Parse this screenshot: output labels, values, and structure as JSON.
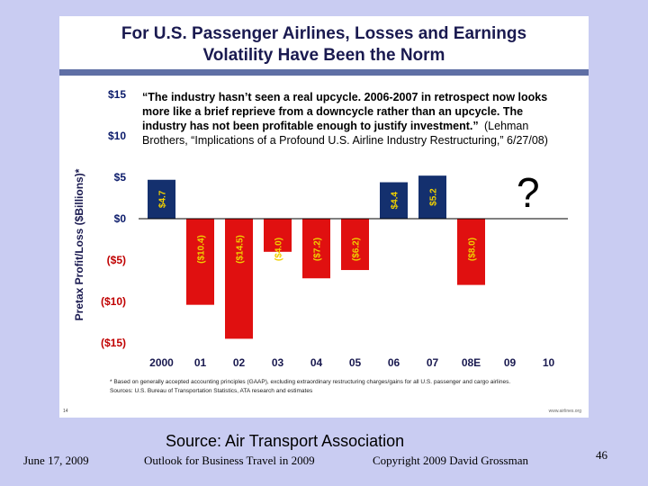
{
  "slide": {
    "title_line1": "For U.S. Passenger Airlines, Losses and Earnings",
    "title_line2": "Volatility Have Been the Norm",
    "quote": [
      "“The industry hasn’t seen a real upcycle. 2006-2007 in retrospect now looks",
      "more like a brief reprieve from a downcycle rather than an upcycle. The",
      "industry has not been profitable enough to justify investment.”",
      "Brothers, “Implications of a Profound U.S. Airline Industry Restructuring,” 6/27/08)"
    ],
    "quote_attribution": "(Lehman",
    "question_mark": "?",
    "footnote1": "* Based on generally accepted accounting principles (GAAP), excluding extraordinary restructuring charges/gains for all U.S. passenger and cargo airlines.",
    "footnote2": "Sources: U.S. Bureau of Transportation Statistics, ATA research and estimates",
    "page_ref": "14",
    "website": "www.airlines.org"
  },
  "source_caption": "Source: Air Transport Association",
  "footer": {
    "date": "June 17, 2009",
    "event": "Outlook for Business Travel in 2009",
    "copyright": "Copyright 2009 David Grossman",
    "slide_number": "46"
  },
  "colors": {
    "positive": "#14306e",
    "negative": "#e01010",
    "positive_label": "#f0d000",
    "negative_label": "#f0d000",
    "tick_positive": "#0a1a6a",
    "tick_negative": "#c00000"
  },
  "chart_data": {
    "type": "bar",
    "categories": [
      "2000",
      "01",
      "02",
      "03",
      "04",
      "05",
      "06",
      "07",
      "08E",
      "09",
      "10"
    ],
    "values": [
      4.7,
      -10.4,
      -14.5,
      -4.0,
      -7.2,
      -6.2,
      4.4,
      5.2,
      -8.0,
      null,
      null
    ],
    "data_labels": [
      "$4.7",
      "($10.4)",
      "($14.5)",
      "($4.0)",
      "($7.2)",
      "($6.2)",
      "$4.4",
      "$5.2",
      "($8.0)",
      "",
      ""
    ],
    "ylabel": "Pretax Profit/Loss ($Billions)*",
    "yticks": [
      15,
      10,
      5,
      0,
      -5,
      -10,
      -15
    ],
    "ytick_labels": [
      "$15",
      "$10",
      "$5",
      "$0",
      "($5)",
      "($10)",
      "($15)"
    ],
    "ylim": [
      -15,
      15
    ],
    "grid": false
  }
}
